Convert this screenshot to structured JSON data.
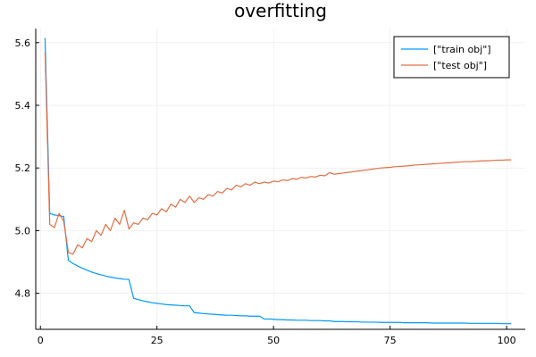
{
  "chart_data": {
    "type": "line",
    "title": "overfitting",
    "xlabel": "",
    "ylabel": "",
    "xlim": [
      -1,
      104
    ],
    "ylim": [
      4.685,
      5.645
    ],
    "xticks": [
      0,
      25,
      50,
      75,
      100
    ],
    "xtick_labels": [
      "0",
      "25",
      "50",
      "75",
      "100"
    ],
    "yticks": [
      4.8,
      5.0,
      5.2,
      5.4,
      5.6
    ],
    "ytick_labels": [
      "4.8",
      "5.0",
      "5.2",
      "5.4",
      "5.6"
    ],
    "grid": true,
    "legend_position": "top-right",
    "series": [
      {
        "name": "[\"train obj\"]",
        "color": "#009af9",
        "x": [
          1,
          2,
          3,
          4,
          5,
          6,
          7,
          8,
          9,
          10,
          11,
          12,
          13,
          14,
          15,
          16,
          17,
          18,
          19,
          20,
          21,
          22,
          23,
          24,
          25,
          26,
          27,
          28,
          29,
          30,
          31,
          32,
          33,
          34,
          35,
          36,
          37,
          38,
          39,
          40,
          41,
          42,
          43,
          44,
          45,
          46,
          47,
          48,
          49,
          50,
          51,
          52,
          53,
          54,
          55,
          56,
          57,
          58,
          59,
          60,
          61,
          62,
          63,
          64,
          65,
          66,
          67,
          68,
          69,
          70,
          71,
          72,
          73,
          74,
          75,
          76,
          77,
          78,
          79,
          80,
          81,
          82,
          83,
          84,
          85,
          86,
          87,
          88,
          89,
          90,
          91,
          92,
          93,
          94,
          95,
          96,
          97,
          98,
          99,
          100,
          101
        ],
        "y": [
          5.615,
          5.055,
          5.05,
          5.048,
          5.045,
          4.905,
          4.895,
          4.887,
          4.88,
          4.874,
          4.868,
          4.863,
          4.859,
          4.855,
          4.852,
          4.849,
          4.847,
          4.845,
          4.844,
          4.784,
          4.78,
          4.776,
          4.773,
          4.77,
          4.768,
          4.766,
          4.764,
          4.763,
          4.762,
          4.761,
          4.76,
          4.76,
          4.738,
          4.737,
          4.735,
          4.734,
          4.733,
          4.732,
          4.731,
          4.73,
          4.73,
          4.729,
          4.728,
          4.728,
          4.727,
          4.727,
          4.727,
          4.718,
          4.718,
          4.717,
          4.716,
          4.716,
          4.715,
          4.715,
          4.714,
          4.714,
          4.714,
          4.713,
          4.713,
          4.713,
          4.712,
          4.712,
          4.71,
          4.71,
          4.71,
          4.709,
          4.709,
          4.709,
          4.708,
          4.708,
          4.708,
          4.708,
          4.707,
          4.707,
          4.707,
          4.707,
          4.707,
          4.706,
          4.706,
          4.706,
          4.706,
          4.706,
          4.706,
          4.705,
          4.705,
          4.705,
          4.705,
          4.705,
          4.705,
          4.705,
          4.705,
          4.704,
          4.704,
          4.704,
          4.704,
          4.704,
          4.704,
          4.704,
          4.703,
          4.703,
          4.703
        ]
      },
      {
        "name": "[\"test obj\"]",
        "color": "#e26f46",
        "x": [
          1,
          2,
          3,
          4,
          5,
          6,
          7,
          8,
          9,
          10,
          11,
          12,
          13,
          14,
          15,
          16,
          17,
          18,
          19,
          20,
          21,
          22,
          23,
          24,
          25,
          26,
          27,
          28,
          29,
          30,
          31,
          32,
          33,
          34,
          35,
          36,
          37,
          38,
          39,
          40,
          41,
          42,
          43,
          44,
          45,
          46,
          47,
          48,
          49,
          50,
          51,
          52,
          53,
          54,
          55,
          56,
          57,
          58,
          59,
          60,
          61,
          62,
          63,
          64,
          65,
          66,
          67,
          68,
          69,
          70,
          71,
          72,
          73,
          74,
          75,
          76,
          77,
          78,
          79,
          80,
          81,
          82,
          83,
          84,
          85,
          86,
          87,
          88,
          89,
          90,
          91,
          92,
          93,
          94,
          95,
          96,
          97,
          98,
          99,
          100,
          101
        ],
        "y": [
          5.57,
          5.02,
          5.01,
          5.055,
          5.03,
          4.93,
          4.925,
          4.955,
          4.945,
          4.975,
          4.965,
          5.0,
          4.985,
          5.02,
          5.0,
          5.04,
          5.02,
          5.065,
          5.005,
          5.025,
          5.02,
          5.04,
          5.035,
          5.055,
          5.05,
          5.07,
          5.06,
          5.085,
          5.075,
          5.1,
          5.09,
          5.11,
          5.09,
          5.105,
          5.1,
          5.115,
          5.11,
          5.125,
          5.12,
          5.135,
          5.13,
          5.145,
          5.14,
          5.15,
          5.145,
          5.155,
          5.15,
          5.155,
          5.152,
          5.158,
          5.156,
          5.162,
          5.16,
          5.166,
          5.164,
          5.17,
          5.168,
          5.173,
          5.171,
          5.177,
          5.175,
          5.185,
          5.18,
          5.182,
          5.184,
          5.186,
          5.188,
          5.19,
          5.192,
          5.194,
          5.196,
          5.198,
          5.2,
          5.201,
          5.202,
          5.204,
          5.205,
          5.206,
          5.207,
          5.209,
          5.21,
          5.211,
          5.212,
          5.213,
          5.214,
          5.215,
          5.216,
          5.217,
          5.218,
          5.219,
          5.22,
          5.22,
          5.221,
          5.222,
          5.223,
          5.223,
          5.224,
          5.225,
          5.225,
          5.226,
          5.226
        ]
      }
    ]
  }
}
